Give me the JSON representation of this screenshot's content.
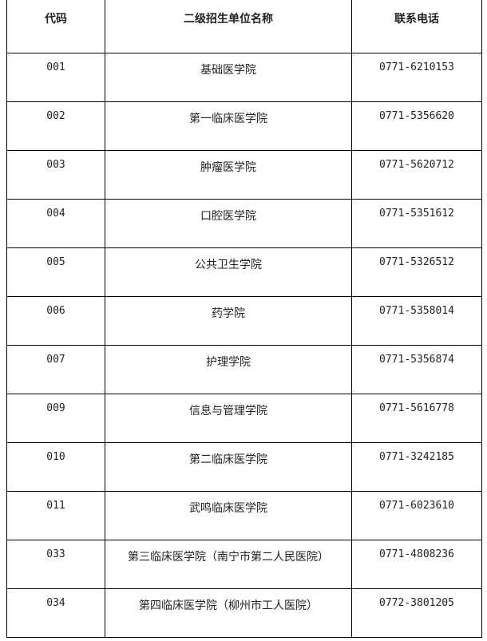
{
  "headers": {
    "code": "代码",
    "name": "二级招生单位名称",
    "phone": "联系电话"
  },
  "rows": [
    {
      "code": "001",
      "name": "基础医学院",
      "phone": "0771-6210153"
    },
    {
      "code": "002",
      "name": "第一临床医学院",
      "phone": "0771-5356620"
    },
    {
      "code": "003",
      "name": "肿瘤医学院",
      "phone": "0771-5620712"
    },
    {
      "code": "004",
      "name": "口腔医学院",
      "phone": "0771-5351612"
    },
    {
      "code": "005",
      "name": "公共卫生学院",
      "phone": "0771-5326512"
    },
    {
      "code": "006",
      "name": "药学院",
      "phone": "0771-5358014"
    },
    {
      "code": "007",
      "name": "护理学院",
      "phone": "0771-5356874"
    },
    {
      "code": "009",
      "name": "信息与管理学院",
      "phone": "0771-5616778"
    },
    {
      "code": "010",
      "name": "第二临床医学院",
      "phone": "0771-3242185"
    },
    {
      "code": "011",
      "name": "武鸣临床医学院",
      "phone": "0771-6023610"
    },
    {
      "code": "033",
      "name": "第三临床医学院（南宁市第二人民医院）",
      "phone": "0771-4808236"
    },
    {
      "code": "034",
      "name": "第四临床医学院（柳州市工人医院）",
      "phone": "0772-3801205"
    }
  ]
}
